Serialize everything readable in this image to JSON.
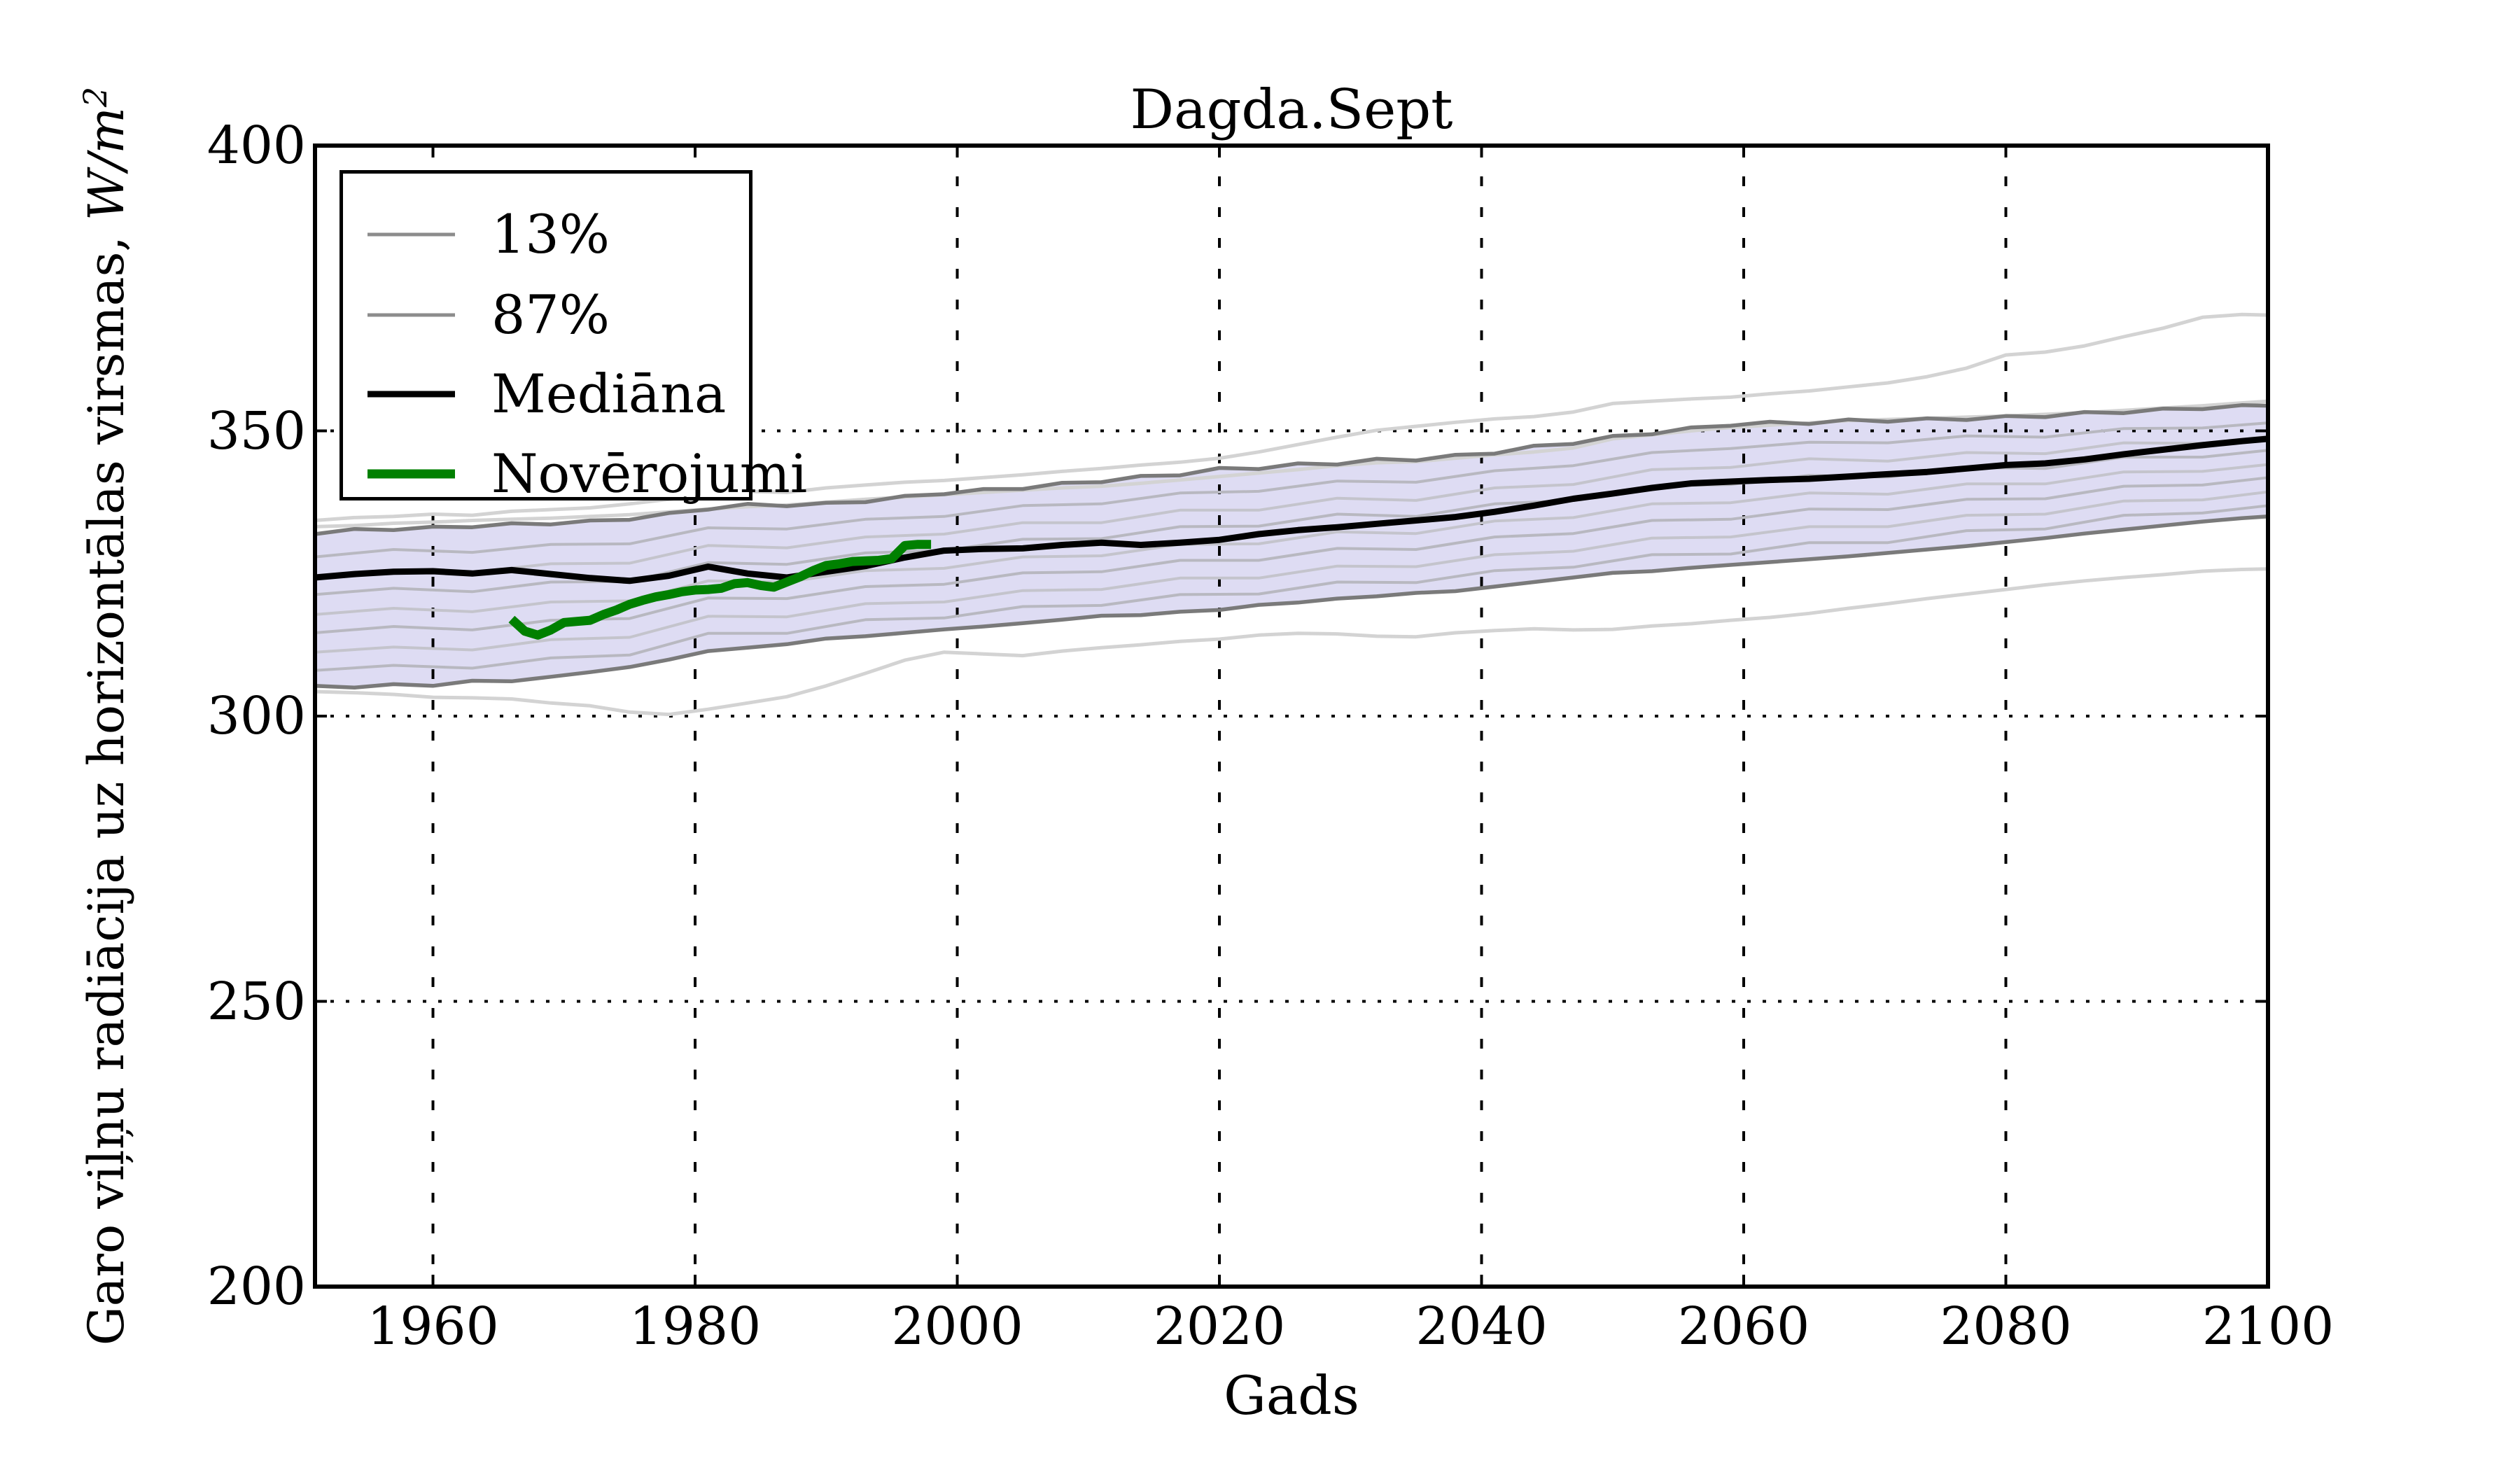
{
  "title": "Dagda.Sept",
  "axes": {
    "xlabel": "Gads",
    "ylabel_text": "Garo viļņu radiācija uz horizontālas virsmas, ",
    "ylabel_unit": "W/m",
    "ylabel_exp": "2",
    "xlim": [
      1951,
      2100
    ],
    "ylim": [
      200,
      400
    ],
    "xticks": [
      1960,
      1980,
      2000,
      2020,
      2040,
      2060,
      2080,
      2100
    ],
    "xticklabels": [
      "1960",
      "1980",
      "2000",
      "2020",
      "2040",
      "2060",
      "2080",
      "2100"
    ],
    "yticks": [
      200,
      250,
      300,
      350,
      400
    ],
    "yticklabels": [
      "200",
      "250",
      "300",
      "350",
      "400"
    ],
    "grid": "on",
    "grid_color": "#000000"
  },
  "legend": {
    "position": "upper-left",
    "items": [
      {
        "label": "13%",
        "color": "#8c8c8c",
        "width": 5
      },
      {
        "label": "87%",
        "color": "#8c8c8c",
        "width": 5
      },
      {
        "label": "Mediāna",
        "color": "#000000",
        "width": 9
      },
      {
        "label": "Novērojumi",
        "color": "#008000",
        "width": 13
      }
    ]
  },
  "chart_data": {
    "type": "line",
    "title": "Dagda.Sept",
    "xlabel": "Gads",
    "ylabel": "Garo viļņu radiācija uz horizontālas virsmas, W/m2",
    "xlim": [
      1951,
      2100
    ],
    "ylim": [
      200,
      400
    ],
    "band": {
      "top_series": "p87",
      "bottom_series": "p13",
      "fill": "#dedcf3"
    },
    "x_arrays": {
      "y3": [
        1951,
        1954,
        1957,
        1960,
        1963,
        1966,
        1969,
        1972,
        1975,
        1978,
        1981,
        1984,
        1987,
        1990,
        1993,
        1996,
        1999,
        2002,
        2005,
        2008,
        2011,
        2014,
        2017,
        2020,
        2023,
        2026,
        2029,
        2032,
        2035,
        2038,
        2041,
        2044,
        2047,
        2050,
        2053,
        2056,
        2059,
        2062,
        2065,
        2068,
        2071,
        2074,
        2077,
        2080,
        2083,
        2086,
        2089,
        2092,
        2095,
        2098,
        2100
      ],
      "y6": [
        1951,
        1957,
        1963,
        1969,
        1975,
        1981,
        1987,
        1993,
        1999,
        2005,
        2011,
        2017,
        2023,
        2029,
        2035,
        2041,
        2047,
        2053,
        2059,
        2065,
        2071,
        2077,
        2083,
        2089,
        2095,
        2100
      ],
      "obs": [
        1966,
        1967,
        1968,
        1969,
        1970,
        1971,
        1972,
        1973,
        1974,
        1975,
        1976,
        1977,
        1978,
        1979,
        1980,
        1981,
        1982,
        1983,
        1984,
        1985,
        1986,
        1987,
        1988,
        1989,
        1990,
        1991,
        1992,
        1993,
        1994,
        1995,
        1996,
        1997,
        1998
      ]
    },
    "series": [
      {
        "name": "max",
        "years": "y3",
        "color": "#d3d3d3",
        "width": 5,
        "values": [
          334.3,
          334.8,
          335.0,
          335.4,
          335.2,
          335.9,
          336.2,
          336.5,
          337.2,
          338.0,
          338.8,
          339.4,
          339.2,
          340.0,
          340.5,
          341.0,
          341.3,
          341.8,
          342.3,
          342.9,
          343.4,
          344.0,
          344.5,
          345.2,
          346.3,
          347.6,
          348.9,
          350.1,
          350.8,
          351.5,
          352.1,
          352.5,
          353.3,
          354.8,
          355.2,
          355.6,
          355.9,
          356.5,
          357.0,
          357.7,
          358.4,
          359.5,
          361.0,
          363.3,
          363.8,
          364.9,
          366.5,
          368.0,
          369.9,
          370.4,
          370.3
        ]
      },
      {
        "name": "upper2",
        "years": "y3",
        "color": "#d3d3d3",
        "width": 5,
        "values": [
          333.2,
          333.4,
          333.8,
          334.0,
          334.3,
          334.5,
          334.7,
          335.0,
          335.3,
          335.8,
          336.3,
          336.7,
          337.0,
          337.5,
          338.0,
          338.4,
          338.8,
          339.2,
          339.6,
          340.0,
          340.3,
          340.8,
          341.4,
          342.0,
          342.6,
          343.2,
          343.9,
          344.4,
          344.6,
          345.2,
          345.8,
          346.3,
          347.0,
          348.6,
          349.3,
          350.0,
          350.6,
          351.0,
          351.4,
          351.8,
          352.0,
          352.2,
          352.4,
          352.6,
          352.9,
          353.2,
          353.6,
          354.0,
          354.4,
          354.9,
          355.2
        ]
      },
      {
        "name": "min",
        "years": "y3",
        "color": "#d3d3d3",
        "width": 5,
        "values": [
          304.3,
          304.1,
          303.8,
          303.3,
          303.2,
          303.0,
          302.3,
          301.8,
          300.7,
          300.3,
          301.2,
          302.3,
          303.4,
          305.3,
          307.5,
          309.8,
          311.2,
          310.9,
          310.6,
          311.4,
          312.0,
          312.5,
          313.1,
          313.5,
          314.2,
          314.5,
          314.4,
          314.0,
          313.9,
          314.6,
          315.0,
          315.3,
          315.1,
          315.2,
          315.8,
          316.2,
          316.8,
          317.3,
          318.0,
          318.9,
          319.7,
          320.6,
          321.4,
          322.2,
          323.0,
          323.7,
          324.3,
          324.8,
          325.4,
          325.7,
          325.8
        ]
      },
      {
        "name": "ens10",
        "years": "y6",
        "color": "#b8b8c0",
        "width": 4,
        "values": [
          308.0,
          308.9,
          308.4,
          310.2,
          310.7,
          314.5,
          314.5,
          316.9,
          317.2,
          319.2,
          319.4,
          321.3,
          321.4,
          323.5,
          323.4,
          325.5,
          326.1,
          328.3,
          328.4,
          330.4,
          330.4,
          332.5,
          332.8,
          335.2,
          335.6,
          336.9
        ]
      },
      {
        "name": "ens22",
        "years": "y6",
        "color": "#c4c4cc",
        "width": 4,
        "values": [
          311.2,
          312.1,
          311.6,
          313.4,
          313.8,
          317.5,
          317.4,
          319.7,
          320.0,
          322.0,
          322.2,
          324.2,
          324.2,
          326.3,
          326.2,
          328.3,
          328.9,
          331.2,
          331.4,
          333.2,
          333.2,
          335.2,
          335.4,
          337.7,
          337.9,
          339.3
        ]
      },
      {
        "name": "ens35",
        "years": "y6",
        "color": "#b8b8c0",
        "width": 4,
        "values": [
          314.6,
          315.7,
          315.1,
          316.8,
          317.1,
          320.7,
          320.6,
          322.7,
          323.1,
          325.1,
          325.3,
          327.3,
          327.3,
          329.4,
          329.2,
          331.4,
          332.0,
          334.3,
          334.5,
          336.3,
          336.2,
          338.0,
          338.1,
          340.3,
          340.5,
          341.8
        ]
      },
      {
        "name": "ens47",
        "years": "y6",
        "color": "#c4c4cc",
        "width": 4,
        "values": [
          317.8,
          318.9,
          318.3,
          320.0,
          320.2,
          323.7,
          323.5,
          325.5,
          325.9,
          327.9,
          328.1,
          330.1,
          330.2,
          332.3,
          332.0,
          334.2,
          334.8,
          337.2,
          337.4,
          339.1,
          338.9,
          340.7,
          340.7,
          342.8,
          342.9,
          344.1
        ]
      },
      {
        "name": "ens60",
        "years": "y6",
        "color": "#b8b8c0",
        "width": 4,
        "values": [
          321.3,
          322.4,
          321.8,
          323.5,
          323.6,
          326.9,
          326.6,
          328.6,
          329.0,
          331.0,
          331.1,
          333.2,
          333.3,
          335.4,
          335.0,
          337.2,
          337.8,
          340.3,
          340.6,
          342.2,
          341.9,
          343.6,
          343.4,
          345.4,
          345.4,
          346.6
        ]
      },
      {
        "name": "ens72",
        "years": "y6",
        "color": "#c4c4cc",
        "width": 4,
        "values": [
          324.5,
          325.6,
          325.2,
          326.7,
          326.8,
          329.9,
          329.5,
          331.4,
          331.9,
          333.9,
          333.9,
          336.1,
          336.1,
          338.2,
          337.8,
          340.0,
          340.6,
          343.2,
          343.6,
          345.1,
          344.7,
          346.2,
          346.0,
          347.9,
          347.8,
          349.0
        ]
      },
      {
        "name": "ens85",
        "years": "y6",
        "color": "#b8b8c0",
        "width": 4,
        "values": [
          327.9,
          329.2,
          328.7,
          330.1,
          330.2,
          333.0,
          332.8,
          334.5,
          335.0,
          336.9,
          337.2,
          339.1,
          339.4,
          341.2,
          341.0,
          343.0,
          343.9,
          346.2,
          346.9,
          348.0,
          347.9,
          349.1,
          348.9,
          350.4,
          350.5,
          351.4
        ]
      },
      {
        "name": "p13",
        "label": "13%",
        "years": "y3",
        "color": "#7a7a7a",
        "width": 5.5,
        "values": [
          305.3,
          305.0,
          305.6,
          305.3,
          306.2,
          306.1,
          306.9,
          307.7,
          308.6,
          309.9,
          311.4,
          312.0,
          312.6,
          313.6,
          314.0,
          314.6,
          315.2,
          315.7,
          316.3,
          316.9,
          317.6,
          317.7,
          318.3,
          318.6,
          319.5,
          319.9,
          320.6,
          321.0,
          321.6,
          321.9,
          322.7,
          323.5,
          324.3,
          325.1,
          325.4,
          326.0,
          326.5,
          327.0,
          327.5,
          328.0,
          328.6,
          329.2,
          329.8,
          330.5,
          331.2,
          332.0,
          332.7,
          333.4,
          334.1,
          334.7,
          335.0
        ]
      },
      {
        "name": "p87",
        "label": "87%",
        "years": "y3",
        "color": "#7a7a7a",
        "width": 5.5,
        "values": [
          331.9,
          332.8,
          332.6,
          333.2,
          333.1,
          333.8,
          333.6,
          334.3,
          334.4,
          335.6,
          336.2,
          337.2,
          336.8,
          337.4,
          337.5,
          338.6,
          338.9,
          339.8,
          339.8,
          340.9,
          341.0,
          342.1,
          342.2,
          343.5,
          343.3,
          344.3,
          344.1,
          345.1,
          344.8,
          345.8,
          346.0,
          347.4,
          347.7,
          349.1,
          349.4,
          350.6,
          350.9,
          351.6,
          351.2,
          352.0,
          351.6,
          352.2,
          351.9,
          352.6,
          352.4,
          353.3,
          353.1,
          353.9,
          353.8,
          354.5,
          354.4
        ]
      },
      {
        "name": "median",
        "label": "Mediāna",
        "years": "y3",
        "color": "#000000",
        "width": 9,
        "values": [
          324.3,
          324.9,
          325.3,
          325.4,
          325.0,
          325.6,
          324.9,
          324.2,
          323.7,
          324.6,
          326.2,
          325.0,
          324.3,
          325.3,
          326.3,
          327.8,
          329.0,
          329.3,
          329.4,
          330.0,
          330.4,
          330.0,
          330.4,
          330.9,
          331.9,
          332.6,
          333.1,
          333.7,
          334.3,
          334.9,
          335.8,
          336.9,
          338.1,
          339.0,
          340.0,
          340.8,
          341.1,
          341.4,
          341.6,
          342.0,
          342.4,
          342.8,
          343.4,
          344.0,
          344.3,
          345.0,
          345.9,
          346.7,
          347.5,
          348.2,
          348.6
        ]
      },
      {
        "name": "obs",
        "label": "Novērojumi",
        "years": "obs",
        "color": "#008000",
        "width": 13,
        "values": [
          317.0,
          314.9,
          314.2,
          315.1,
          316.4,
          316.6,
          316.8,
          317.8,
          318.6,
          319.6,
          320.3,
          320.9,
          321.3,
          321.8,
          322.1,
          322.2,
          322.4,
          323.2,
          323.4,
          322.9,
          322.6,
          323.5,
          324.4,
          325.5,
          326.4,
          326.7,
          327.1,
          327.2,
          327.3,
          327.6,
          329.9,
          330.1,
          330.1
        ]
      }
    ]
  }
}
